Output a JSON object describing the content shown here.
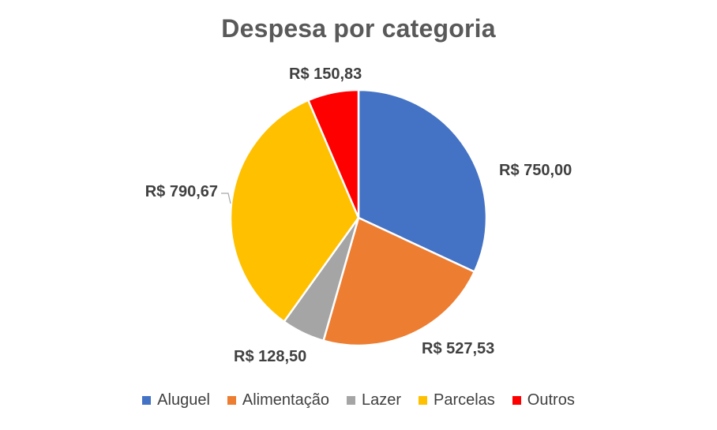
{
  "chart_data": {
    "type": "pie",
    "title": "Despesa por categoria",
    "categories": [
      "Aluguel",
      "Alimentação",
      "Lazer",
      "Parcelas",
      "Outros"
    ],
    "values": [
      750.0,
      527.53,
      128.5,
      790.67,
      150.83
    ],
    "data_labels": [
      "R$ 750,00",
      "R$ 527,53",
      "R$ 128,50",
      "R$ 790,67",
      "R$ 150,83"
    ],
    "colors": [
      "#4472C4",
      "#ED7D31",
      "#A5A5A5",
      "#FFC000",
      "#FF0000"
    ],
    "legend_position": "bottom",
    "start_angle_deg": 0,
    "direction": "clockwise"
  }
}
